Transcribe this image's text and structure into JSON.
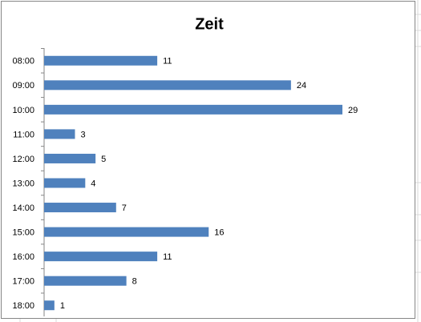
{
  "chart_data": {
    "type": "bar",
    "orientation": "horizontal",
    "title": "Zeit",
    "categories": [
      "08:00",
      "09:00",
      "10:00",
      "11:00",
      "12:00",
      "13:00",
      "14:00",
      "15:00",
      "16:00",
      "17:00",
      "18:00"
    ],
    "values": [
      11,
      24,
      29,
      3,
      5,
      4,
      7,
      16,
      11,
      8,
      1
    ],
    "color": "#4f81bd",
    "grid": false
  }
}
